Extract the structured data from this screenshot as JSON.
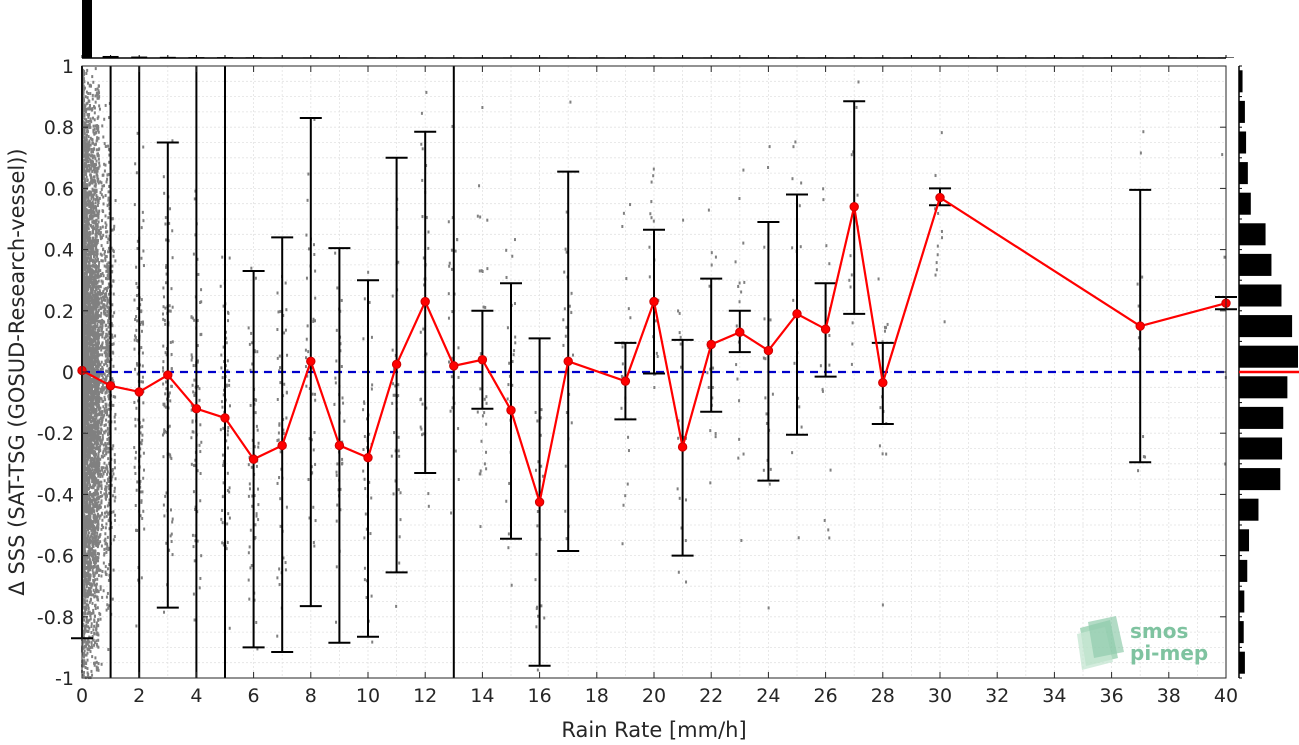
{
  "chart_data": {
    "type": "scatter",
    "xlabel": "Rain Rate [mm/h]",
    "ylabel": "Δ SSS (SAT-TSG (GOSUD-Research-vessel))",
    "xlim": [
      0,
      40
    ],
    "ylim": [
      -1,
      1
    ],
    "x_ticks": [
      "0",
      "2",
      "4",
      "6",
      "8",
      "10",
      "12",
      "14",
      "16",
      "18",
      "20",
      "22",
      "24",
      "26",
      "28",
      "30",
      "32",
      "34",
      "36",
      "38",
      "40"
    ],
    "y_ticks": [
      "-1",
      "-0.8",
      "-0.6",
      "-0.4",
      "-0.2",
      "0",
      "0.2",
      "0.4",
      "0.6",
      "0.8",
      "1"
    ],
    "grid": true,
    "zero_line": {
      "y": 0,
      "style": "dashed",
      "color": "#0000cc"
    },
    "colors": {
      "mean_line": "#ff0000",
      "error_bar": "#000000",
      "scatter": "#808080",
      "zero_line": "#0000cc",
      "histogram": "#000000"
    },
    "series": [
      {
        "x": [
          0,
          1,
          2,
          3,
          4,
          5,
          6,
          7,
          8,
          9,
          10,
          11,
          12,
          13,
          14,
          15,
          16,
          17,
          19,
          20,
          21,
          22,
          23,
          24,
          25,
          26,
          27,
          28,
          30,
          37,
          40
        ],
        "mean": [
          0.005,
          -0.045,
          -0.065,
          -0.01,
          -0.12,
          -0.15,
          -0.285,
          -0.24,
          0.035,
          -0.24,
          -0.28,
          0.025,
          0.23,
          0.02,
          0.04,
          -0.125,
          -0.425,
          0.035,
          -0.03,
          0.23,
          -0.245,
          0.09,
          0.13,
          0.07,
          0.19,
          0.14,
          0.54,
          -0.035,
          0.57,
          0.15,
          0.225
        ],
        "upper": [
          1,
          1,
          1,
          0.75,
          1,
          1,
          0.33,
          0.44,
          0.83,
          0.405,
          0.3,
          0.7,
          0.785,
          1,
          0.2,
          0.29,
          0.11,
          0.655,
          0.095,
          0.465,
          0.105,
          0.305,
          0.2,
          0.49,
          0.58,
          0.29,
          0.885,
          0.095,
          0.6,
          0.595,
          0.245
        ],
        "lower": [
          -0.87,
          -1,
          -1,
          -0.77,
          -1,
          -1,
          -0.9,
          -0.915,
          -0.765,
          -0.885,
          -0.865,
          -0.655,
          -0.33,
          -1,
          -0.12,
          -0.545,
          -0.96,
          -0.585,
          -0.155,
          -0.005,
          -0.6,
          -0.13,
          0.065,
          -0.355,
          -0.205,
          -0.015,
          0.19,
          -0.17,
          0.545,
          -0.295,
          0.205
        ]
      }
    ],
    "top_histogram": {
      "x": [
        0,
        1,
        2,
        3,
        4,
        5,
        6,
        7,
        8,
        9,
        10,
        11,
        12,
        13,
        14,
        15,
        16,
        17,
        18,
        19,
        20,
        21,
        22,
        23,
        24,
        25,
        26,
        27,
        28,
        29,
        30,
        31,
        32,
        33,
        34,
        35,
        36,
        37,
        38,
        39,
        40
      ],
      "counts": [
        100,
        3.5,
        2.5,
        2,
        1.5,
        1.5,
        1.2,
        1,
        1,
        1,
        1,
        1,
        1,
        1,
        1,
        1,
        1,
        1,
        1,
        1,
        1,
        1,
        1,
        1,
        1,
        1,
        1,
        1,
        1,
        1,
        1,
        1,
        1,
        1,
        1,
        1,
        1,
        1,
        1,
        1,
        1
      ]
    },
    "right_histogram": {
      "y": [
        -0.95,
        -0.85,
        -0.75,
        -0.65,
        -0.55,
        -0.45,
        -0.35,
        -0.25,
        -0.15,
        -0.05,
        0.05,
        0.15,
        0.25,
        0.35,
        0.45,
        0.55,
        0.65,
        0.75,
        0.85,
        0.95
      ],
      "counts": [
        10,
        8,
        9,
        14,
        17,
        33,
        70,
        73,
        75,
        82,
        100,
        90,
        72,
        55,
        45,
        20,
        15,
        12,
        10,
        6
      ]
    },
    "logo": {
      "line1": "smos",
      "line2": "pi-mep"
    }
  }
}
